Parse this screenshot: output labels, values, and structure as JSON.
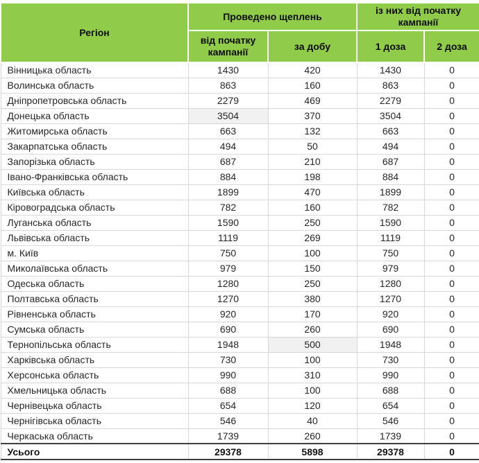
{
  "colors": {
    "header_green": "#90CC4A",
    "highlight": "#F1F1F1",
    "grid_line": "#D6D6D6",
    "total_border": "#3F3F3F"
  },
  "chart_data": {
    "type": "table",
    "title": "",
    "column_groups": [
      {
        "label": "Регіон",
        "span": 1
      },
      {
        "label": "Проведено щеплень",
        "span": 2
      },
      {
        "label": "із них від початку кампанії",
        "span": 2
      }
    ],
    "columns": [
      "Регіон",
      "від початку кампанії",
      "за добу",
      "1 доза",
      "2 доза"
    ],
    "rows": [
      [
        "Вінницька область",
        1430,
        420,
        1430,
        0
      ],
      [
        "Волинська область",
        863,
        160,
        863,
        0
      ],
      [
        "Дніпропетровська область",
        2279,
        469,
        2279,
        0
      ],
      [
        "Донецька область",
        3504,
        370,
        3504,
        0
      ],
      [
        "Житомирська область",
        663,
        132,
        663,
        0
      ],
      [
        "Закарпатська область",
        494,
        50,
        494,
        0
      ],
      [
        "Запорізька область",
        687,
        210,
        687,
        0
      ],
      [
        "Івано-Франківська область",
        884,
        198,
        884,
        0
      ],
      [
        "Київська область",
        1899,
        470,
        1899,
        0
      ],
      [
        "Кіровоградська область",
        782,
        160,
        782,
        0
      ],
      [
        "Луганська область",
        1590,
        250,
        1590,
        0
      ],
      [
        "Львівська область",
        1119,
        269,
        1119,
        0
      ],
      [
        "м. Київ",
        750,
        100,
        750,
        0
      ],
      [
        "Миколаївська область",
        979,
        150,
        979,
        0
      ],
      [
        "Одеська область",
        1280,
        250,
        1280,
        0
      ],
      [
        "Полтавська область",
        1270,
        380,
        1270,
        0
      ],
      [
        "Рівненська область",
        920,
        170,
        920,
        0
      ],
      [
        "Сумська область",
        690,
        260,
        690,
        0
      ],
      [
        "Тернопільська область",
        1948,
        500,
        1948,
        0
      ],
      [
        "Харківська область",
        730,
        100,
        730,
        0
      ],
      [
        "Херсонська область",
        990,
        310,
        990,
        0
      ],
      [
        "Хмельницька область",
        688,
        100,
        688,
        0
      ],
      [
        "Чернівецька область",
        654,
        120,
        654,
        0
      ],
      [
        "Чернігівська область",
        546,
        40,
        546,
        0
      ],
      [
        "Черкаська область",
        1739,
        260,
        1739,
        0
      ]
    ],
    "total_row": [
      "Усього",
      29378,
      5898,
      29378,
      0
    ],
    "highlighted_cells": [
      {
        "row_index": 3,
        "col_index": 1,
        "row": "Донецька область",
        "column": "від початку кампанії"
      },
      {
        "row_index": 18,
        "col_index": 2,
        "row": "Тернопільська область",
        "column": "за добу"
      }
    ],
    "layout": {
      "grid": true,
      "header_background": "#90CC4A",
      "body_background": "#FFFFFF"
    }
  }
}
